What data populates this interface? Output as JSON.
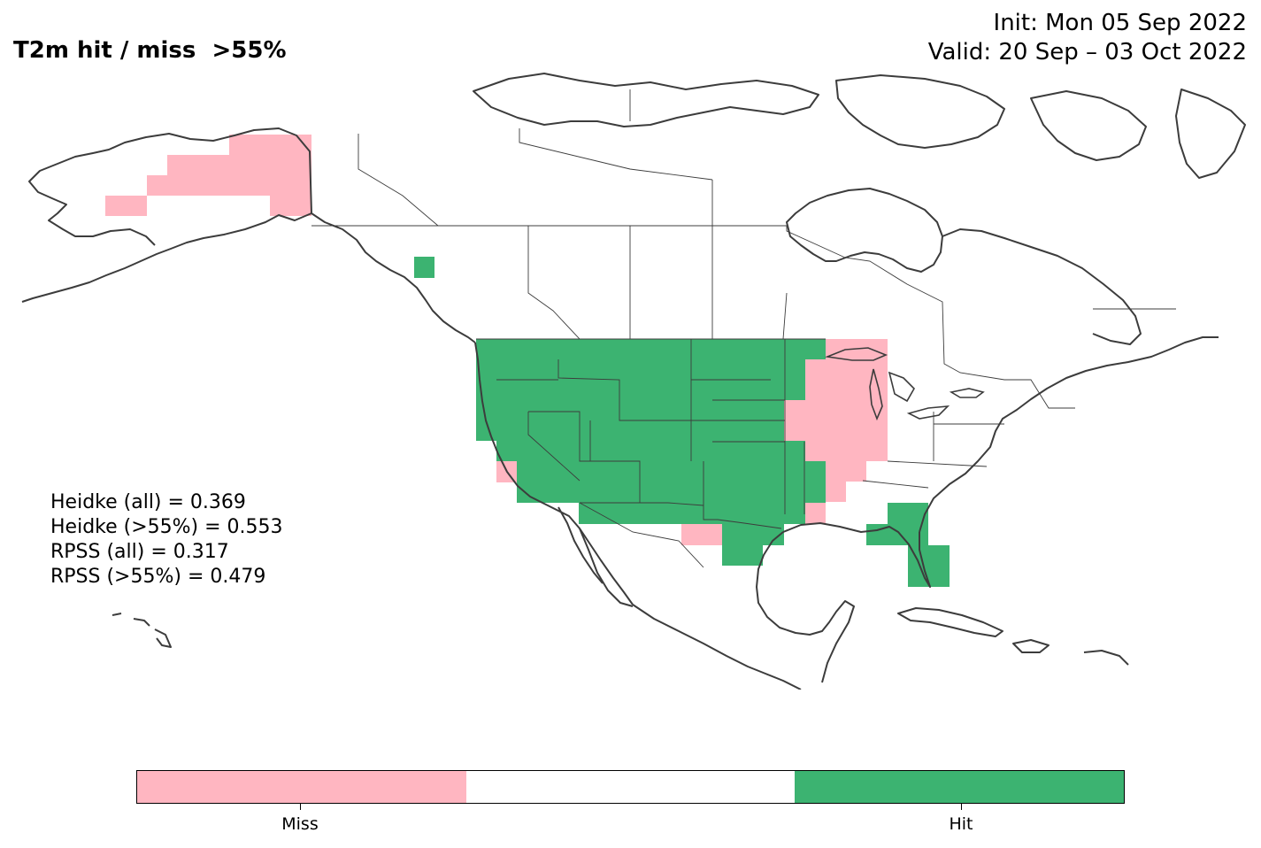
{
  "title": {
    "left": "T2m hit / miss  >55%",
    "init": "Init: Mon 05 Sep 2022",
    "valid": "Valid: 20 Sep – 03 Oct 2022"
  },
  "stats": [
    "Heidke (all) = 0.369",
    "Heidke (>55%) = 0.553",
    "RPSS (all) = 0.317",
    "RPSS (>55%) = 0.479"
  ],
  "colorbar": {
    "segments": [
      {
        "category": "miss",
        "color": "#ffb6c1"
      },
      {
        "category": "neutral",
        "color": "#ffffff"
      },
      {
        "category": "hit",
        "color": "#3cb371"
      }
    ],
    "labels": {
      "miss": "Miss",
      "hit": "Hit"
    }
  },
  "colors": {
    "miss": "#ffb6c1",
    "hit": "#3cb371",
    "coastline": "#3c3c3c"
  }
}
